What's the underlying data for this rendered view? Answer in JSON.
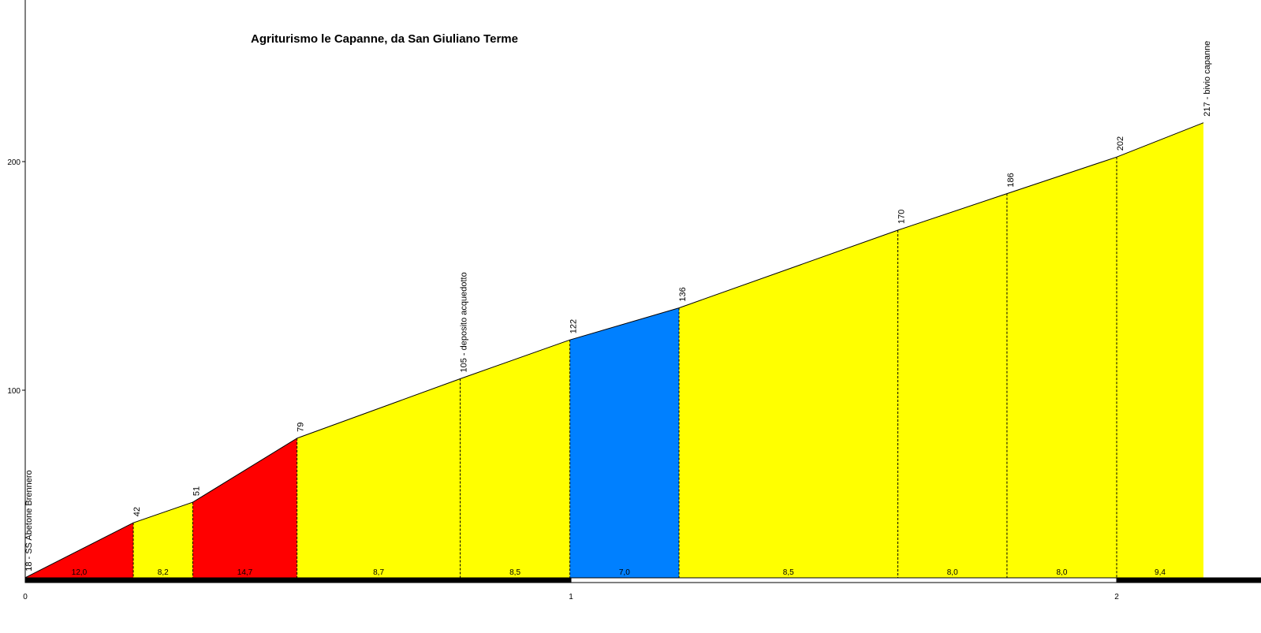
{
  "chart_data": {
    "type": "area",
    "title": "Agriturismo le Capanne, da San Giuliano Terme",
    "xlabel": "",
    "ylabel": "",
    "xlim": [
      0,
      2.26
    ],
    "ylim": [
      12,
      255
    ],
    "x_ticks": [
      {
        "value": 0,
        "label": "0"
      },
      {
        "value": 1,
        "label": "1"
      },
      {
        "value": 2,
        "label": "2"
      }
    ],
    "y_ticks": [
      {
        "value": 100,
        "label": "100"
      },
      {
        "value": 200,
        "label": "200"
      }
    ],
    "grid": false,
    "legend": "none",
    "points": [
      {
        "km": 0.0,
        "elev": 18,
        "label": "18 - SS Abetone Brennero"
      },
      {
        "km": 0.198,
        "elev": 42,
        "label": "42"
      },
      {
        "km": 0.307,
        "elev": 51,
        "label": "51"
      },
      {
        "km": 0.498,
        "elev": 79,
        "label": "79"
      },
      {
        "km": 0.797,
        "elev": 105,
        "label": "105 - deposito acquedotto"
      },
      {
        "km": 0.998,
        "elev": 122,
        "label": "122"
      },
      {
        "km": 1.198,
        "elev": 136,
        "label": "136"
      },
      {
        "km": 1.599,
        "elev": 170,
        "label": "170"
      },
      {
        "km": 1.799,
        "elev": 186,
        "label": "186"
      },
      {
        "km": 2.0,
        "elev": 202,
        "label": "202"
      },
      {
        "km": 2.159,
        "elev": 217,
        "label": "217 - bivio capanne"
      }
    ],
    "segments": [
      {
        "gradient": "12,0",
        "color": "#ff0000"
      },
      {
        "gradient": "8,2",
        "color": "#ffff00"
      },
      {
        "gradient": "14,7",
        "color": "#ff0000"
      },
      {
        "gradient": "8,7",
        "color": "#ffff00"
      },
      {
        "gradient": "8,5",
        "color": "#ffff00"
      },
      {
        "gradient": "7,0",
        "color": "#0080ff"
      },
      {
        "gradient": "8,5",
        "color": "#ffff00"
      },
      {
        "gradient": "8,0",
        "color": "#ffff00"
      },
      {
        "gradient": "8,0",
        "color": "#ffff00"
      },
      {
        "gradient": "9,4",
        "color": "#ffff00"
      }
    ]
  }
}
